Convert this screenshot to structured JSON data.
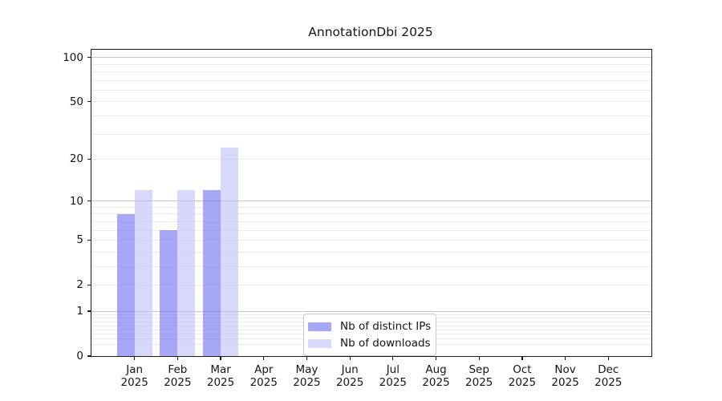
{
  "chart_data": {
    "type": "bar",
    "title": "AnnotationDbi 2025",
    "months": [
      "Jan",
      "Feb",
      "Mar",
      "Apr",
      "May",
      "Jun",
      "Jul",
      "Aug",
      "Sep",
      "Oct",
      "Nov",
      "Dec"
    ],
    "year_label": "2025",
    "series": [
      {
        "key": "distinct-ips",
        "name": "Nb of distinct IPs",
        "color": "rgba(95,95,240,0.55)",
        "values": [
          8,
          6,
          12,
          0,
          0,
          0,
          0,
          0,
          0,
          0,
          0,
          0
        ]
      },
      {
        "key": "downloads",
        "name": "Nb of downloads",
        "color": "rgba(184,184,246,0.55)",
        "values": [
          12,
          12,
          24,
          0,
          0,
          0,
          0,
          0,
          0,
          0,
          0,
          0
        ]
      }
    ],
    "yscale": "log1p",
    "ymax": 113,
    "yticks": [
      0,
      1,
      2,
      5,
      10,
      20,
      50,
      100
    ],
    "grid_major": [
      1,
      10,
      100
    ],
    "grid_minor": [
      0.2,
      0.3,
      0.4,
      0.5,
      0.6,
      0.7,
      0.8,
      0.9,
      2,
      3,
      4,
      5,
      6,
      7,
      8,
      9,
      20,
      30,
      40,
      50,
      60,
      70,
      80,
      90
    ],
    "legend_position": "lower center",
    "colors": {
      "grid_major": "#c6c6c6",
      "grid_minor": "#ededed",
      "axis": "#1a1a1a",
      "text": "#151515",
      "background": "#ffffff"
    }
  }
}
